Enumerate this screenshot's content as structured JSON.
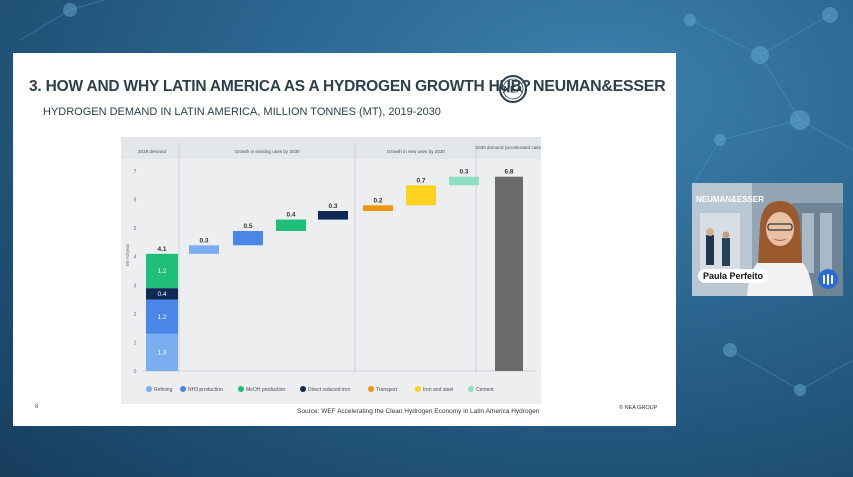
{
  "slide": {
    "title": "3. HOW AND WHY LATIN AMERICA AS A HYDROGEN GROWTH HUB?",
    "logo_text": "NEA",
    "brand": "NEUMAN&ESSER",
    "subtitle": "HYDROGEN DEMAND IN LATIN AMERICA, MILLION TONNES (MT), 2019-2030",
    "page_number": "8",
    "source": "Source: WEF Accelerating the Clean Hydrogen Economy in Latin America Hydrogen",
    "copyright": "© NEA GROUP"
  },
  "chart_data": {
    "type": "bar",
    "subtype": "waterfall",
    "ylabel": "Mt H2/year",
    "ylim": [
      0,
      7
    ],
    "yticks": [
      "0",
      "1",
      "2",
      "3",
      "4",
      "5",
      "6",
      "7"
    ],
    "section_headers": [
      "2019 demand",
      "Growth in existing uses by 2030",
      "Growth in new uses by 2030",
      "2030 demand (accelerated case)"
    ],
    "legend": [
      {
        "name": "Refining",
        "color": "#7aaef0"
      },
      {
        "name": "NH3 production",
        "color": "#4a86e8"
      },
      {
        "name": "MeOH production",
        "color": "#1fbf7a"
      },
      {
        "name": "Direct reduced iron",
        "color": "#0e2a52"
      },
      {
        "name": "Transport",
        "color": "#f5950f"
      },
      {
        "name": "Iron and steel",
        "color": "#ffd21f"
      },
      {
        "name": "Cement",
        "color": "#8fe0c3"
      }
    ],
    "stack_2019": {
      "total_label": "4.1",
      "segments": [
        {
          "category": "Refining",
          "value": 1.3,
          "label": "1.3",
          "color": "#7aaef0"
        },
        {
          "category": "NH3 production",
          "value": 1.2,
          "label": "1.2",
          "color": "#4a86e8"
        },
        {
          "category": "Direct reduced iron",
          "value": 0.4,
          "label": "0.4",
          "color": "#0e2a52"
        },
        {
          "category": "MeOH production",
          "value": 1.2,
          "label": "1.2",
          "color": "#1fbf7a"
        }
      ]
    },
    "growth": [
      {
        "category": "Refining",
        "value": 0.3,
        "label": "0.3",
        "color": "#7aaef0"
      },
      {
        "category": "NH3 production",
        "value": 0.5,
        "label": "0.5",
        "color": "#4a86e8"
      },
      {
        "category": "MeOH production",
        "value": 0.4,
        "label": "0.4",
        "color": "#1fbf7a"
      },
      {
        "category": "Direct reduced iron",
        "value": 0.3,
        "label": "0.3",
        "color": "#0e2a52"
      },
      {
        "category": "Transport",
        "value": 0.2,
        "label": "0.2",
        "color": "#f5950f"
      },
      {
        "category": "Iron and steel",
        "value": 0.7,
        "label": "0.7",
        "color": "#ffd21f"
      },
      {
        "category": "Cement",
        "value": 0.3,
        "label": "0.3",
        "color": "#8fe0c3"
      }
    ],
    "total_2030": {
      "value": 6.8,
      "label": "6.8",
      "color": "#6b6b6b"
    }
  },
  "participant": {
    "brand": "NEUMAN&ESSER",
    "name": "Paula Perfeito",
    "mic_icon": "audio-bars-icon",
    "accent": "#2b6bd8"
  }
}
